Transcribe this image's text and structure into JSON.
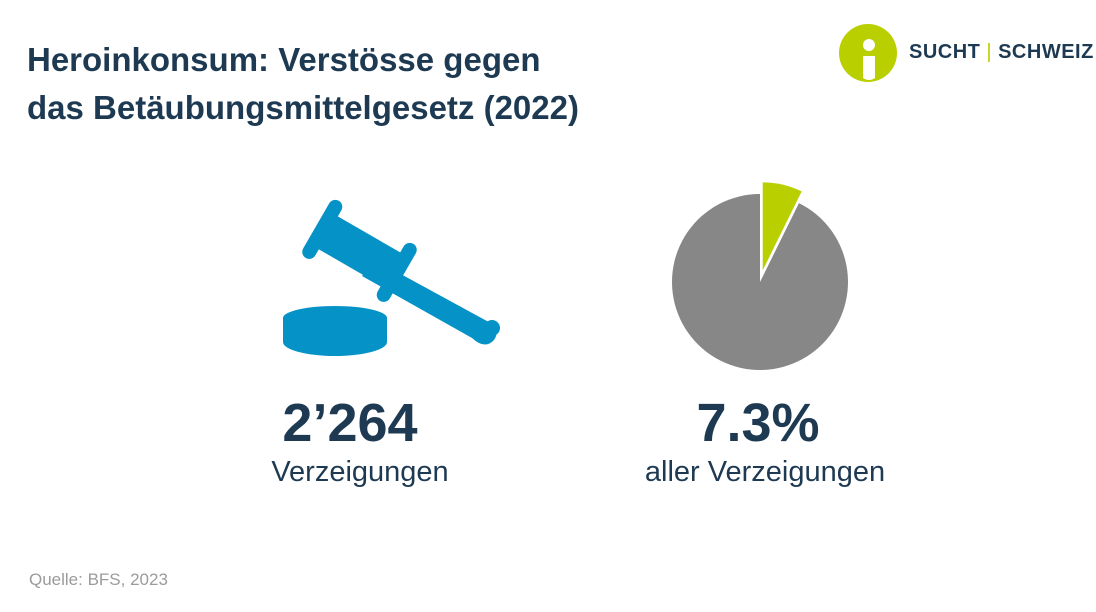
{
  "title": {
    "line1": "Heroinkonsum: Verstösse gegen",
    "line2": "das Betäubungsmittelgesetz (2022)"
  },
  "logo": {
    "word1": "SUCHT",
    "separator": "|",
    "word2": "SCHWEIZ",
    "colors": {
      "circle": "#b9cf00",
      "text": "#1e3a52"
    }
  },
  "stats": [
    {
      "value": "2’264",
      "label": "Verzeigungen",
      "icon": "gavel-icon"
    },
    {
      "value": "7.3%",
      "label": "aller Verzeigungen",
      "icon": "pie-chart"
    }
  ],
  "chart_data": {
    "type": "pie",
    "values": [
      7.3,
      92.7
    ],
    "unit": "%",
    "colors": [
      "#b9cf00",
      "#878787"
    ],
    "highlight_index": 0,
    "exploded": true
  },
  "colors": {
    "title": "#1e3a52",
    "gavel": "#0592c6",
    "pie_rest": "#878787",
    "pie_highlight": "#b9cf00",
    "source": "#9b9b9b"
  },
  "source": "Quelle: BFS, 2023"
}
